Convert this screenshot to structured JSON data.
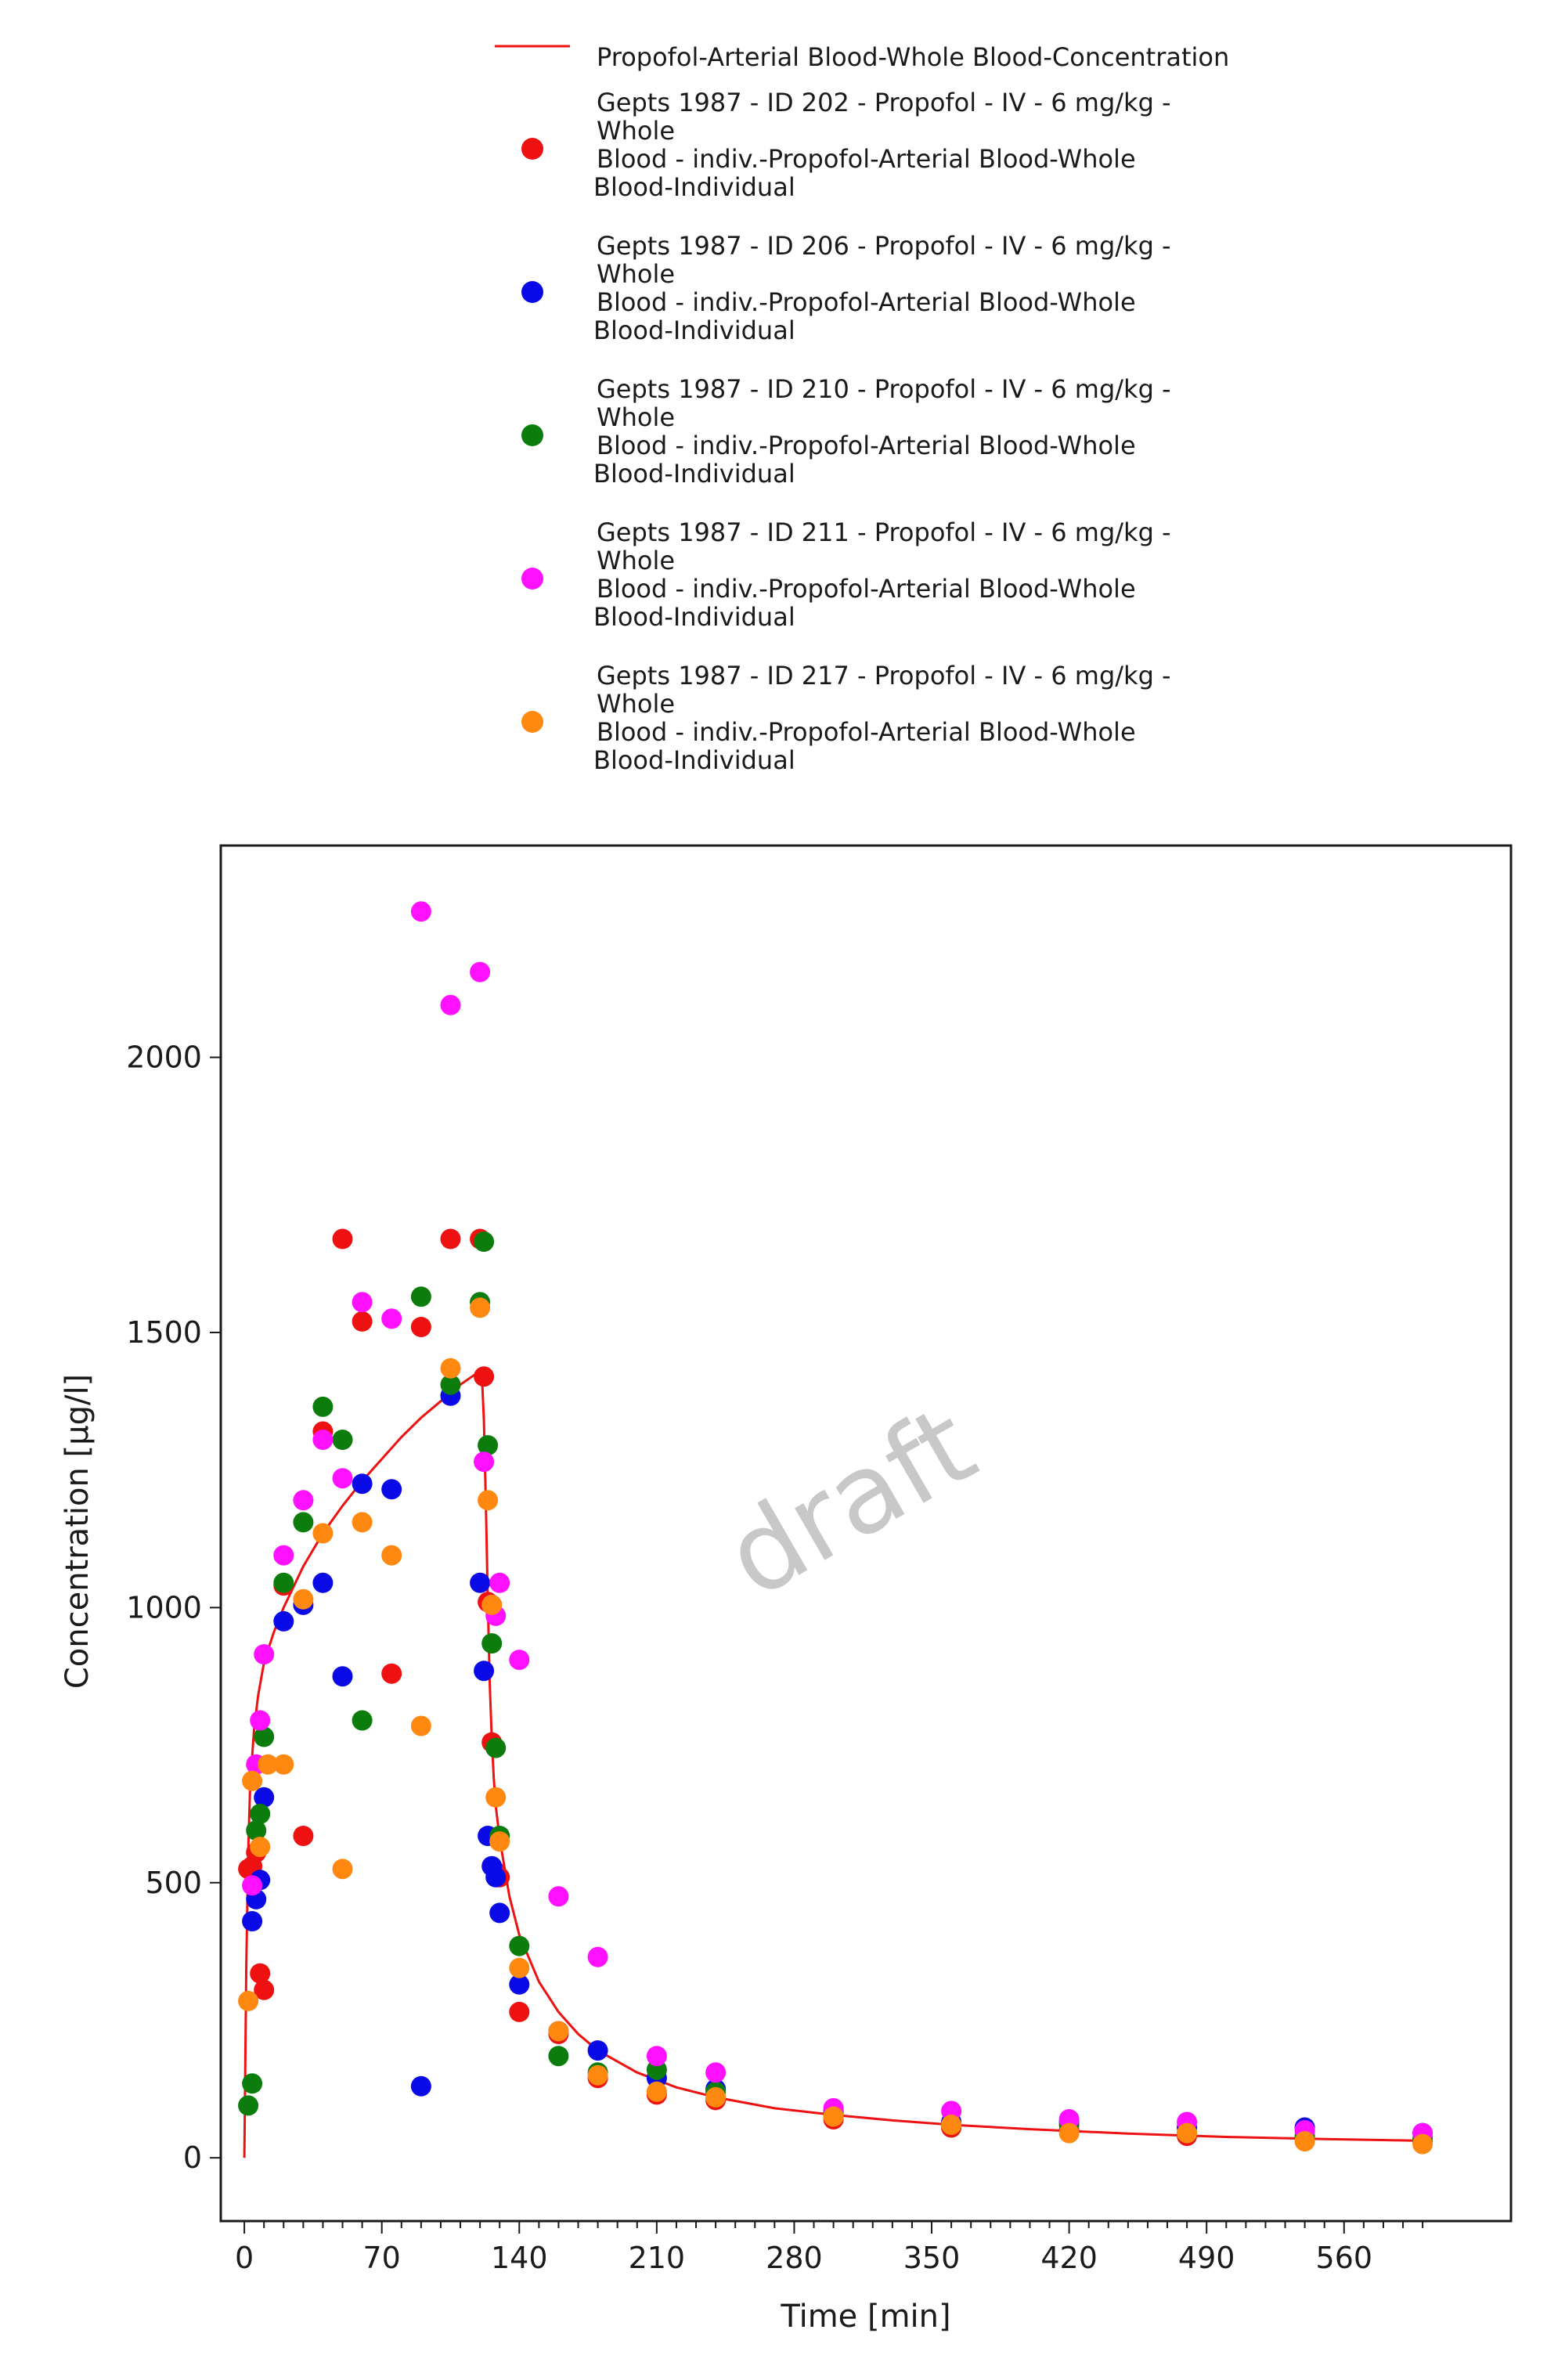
{
  "chart_data": {
    "type": "scatter",
    "watermark": "draft",
    "xlabel": "Time [min]",
    "ylabel": "Concentration [µg/l]",
    "xlim": [
      -12,
      645
    ],
    "ylim": [
      -115,
      2385
    ],
    "xticks": [
      0,
      70,
      140,
      210,
      280,
      350,
      420,
      490,
      560
    ],
    "yticks": [
      0,
      500,
      1000,
      1500,
      2000
    ],
    "grid": false,
    "legend_position": "top",
    "line_series": {
      "name": "Propofol-Arterial Blood-Whole Blood-Concentration",
      "color": "#ee1111",
      "x": [
        0,
        1,
        2,
        3,
        5,
        7,
        10,
        15,
        20,
        30,
        40,
        50,
        60,
        70,
        80,
        90,
        100,
        110,
        120,
        121,
        122,
        123,
        124,
        125,
        126,
        127,
        128,
        130,
        135,
        140,
        150,
        160,
        170,
        180,
        200,
        220,
        240,
        270,
        300,
        330,
        360,
        400,
        450,
        500,
        550,
        600
      ],
      "y": [
        0,
        350,
        560,
        680,
        780,
        840,
        900,
        955,
        1000,
        1075,
        1135,
        1185,
        1230,
        1270,
        1310,
        1345,
        1375,
        1405,
        1430,
        1420,
        1340,
        1190,
        1010,
        860,
        760,
        690,
        640,
        580,
        475,
        405,
        320,
        265,
        225,
        195,
        155,
        128,
        110,
        90,
        78,
        68,
        60,
        52,
        44,
        38,
        34,
        31
      ]
    },
    "series": [
      {
        "name_lines": [
          "Gepts 1987 - ID 202 - Propofol - IV - 6 mg/kg -",
          "Whole",
          "Blood - indiv.-Propofol-Arterial Blood-Whole",
          "Blood-Individual"
        ],
        "color": "#ee1111",
        "points": [
          [
            2,
            525
          ],
          [
            4,
            530
          ],
          [
            6,
            555
          ],
          [
            8,
            335
          ],
          [
            10,
            305
          ],
          [
            20,
            1040
          ],
          [
            30,
            585
          ],
          [
            40,
            1320
          ],
          [
            50,
            1670
          ],
          [
            60,
            1520
          ],
          [
            75,
            880
          ],
          [
            90,
            1510
          ],
          [
            105,
            1670
          ],
          [
            120,
            1670
          ],
          [
            122,
            1420
          ],
          [
            124,
            1010
          ],
          [
            126,
            755
          ],
          [
            128,
            520
          ],
          [
            130,
            510
          ],
          [
            140,
            265
          ],
          [
            160,
            225
          ],
          [
            180,
            145
          ],
          [
            210,
            115
          ],
          [
            240,
            105
          ],
          [
            300,
            70
          ],
          [
            360,
            55
          ],
          [
            420,
            50
          ],
          [
            480,
            40
          ],
          [
            540,
            35
          ],
          [
            600,
            30
          ]
        ]
      },
      {
        "name_lines": [
          "Gepts 1987 - ID 206 - Propofol - IV - 6 mg/kg -",
          "Whole",
          "Blood - indiv.-Propofol-Arterial Blood-Whole",
          "Blood-Individual"
        ],
        "color": "#0a0ae6",
        "points": [
          [
            4,
            430
          ],
          [
            6,
            470
          ],
          [
            8,
            505
          ],
          [
            10,
            655
          ],
          [
            20,
            975
          ],
          [
            30,
            1005
          ],
          [
            40,
            1045
          ],
          [
            50,
            875
          ],
          [
            60,
            1225
          ],
          [
            75,
            1215
          ],
          [
            90,
            130
          ],
          [
            105,
            1385
          ],
          [
            120,
            1045
          ],
          [
            122,
            885
          ],
          [
            124,
            585
          ],
          [
            126,
            530
          ],
          [
            128,
            510
          ],
          [
            130,
            445
          ],
          [
            140,
            315
          ],
          [
            160,
            230
          ],
          [
            180,
            195
          ],
          [
            210,
            145
          ],
          [
            240,
            125
          ],
          [
            300,
            85
          ],
          [
            360,
            65
          ],
          [
            420,
            65
          ],
          [
            480,
            55
          ],
          [
            540,
            55
          ],
          [
            600,
            45
          ]
        ]
      },
      {
        "name_lines": [
          "Gepts 1987 - ID 210 - Propofol - IV - 6 mg/kg -",
          "Whole",
          "Blood - indiv.-Propofol-Arterial Blood-Whole",
          "Blood-Individual"
        ],
        "color": "#0c7d0c",
        "points": [
          [
            2,
            95
          ],
          [
            4,
            135
          ],
          [
            6,
            595
          ],
          [
            8,
            625
          ],
          [
            10,
            765
          ],
          [
            20,
            1045
          ],
          [
            30,
            1155
          ],
          [
            40,
            1365
          ],
          [
            50,
            1305
          ],
          [
            60,
            795
          ],
          [
            90,
            1565
          ],
          [
            105,
            1405
          ],
          [
            120,
            1555
          ],
          [
            122,
            1665
          ],
          [
            124,
            1295
          ],
          [
            126,
            935
          ],
          [
            128,
            745
          ],
          [
            130,
            585
          ],
          [
            140,
            385
          ],
          [
            160,
            185
          ],
          [
            180,
            155
          ],
          [
            210,
            160
          ],
          [
            240,
            120
          ],
          [
            300,
            80
          ],
          [
            360,
            60
          ],
          [
            420,
            60
          ],
          [
            480,
            45
          ],
          [
            540,
            40
          ],
          [
            600,
            35
          ]
        ]
      },
      {
        "name_lines": [
          "Gepts 1987 - ID 211 - Propofol - IV - 6 mg/kg -",
          "Whole",
          "Blood - indiv.-Propofol-Arterial Blood-Whole",
          "Blood-Individual"
        ],
        "color": "#ff11ff",
        "points": [
          [
            4,
            495
          ],
          [
            6,
            715
          ],
          [
            8,
            795
          ],
          [
            10,
            915
          ],
          [
            20,
            1095
          ],
          [
            30,
            1195
          ],
          [
            40,
            1305
          ],
          [
            50,
            1235
          ],
          [
            60,
            1555
          ],
          [
            75,
            1525
          ],
          [
            90,
            2265
          ],
          [
            105,
            2095
          ],
          [
            120,
            2155
          ],
          [
            122,
            1265
          ],
          [
            126,
            1005
          ],
          [
            128,
            985
          ],
          [
            130,
            1045
          ],
          [
            140,
            905
          ],
          [
            160,
            475
          ],
          [
            180,
            365
          ],
          [
            210,
            185
          ],
          [
            240,
            155
          ],
          [
            300,
            90
          ],
          [
            360,
            85
          ],
          [
            420,
            70
          ],
          [
            480,
            65
          ],
          [
            540,
            50
          ],
          [
            600,
            45
          ]
        ]
      },
      {
        "name_lines": [
          "Gepts 1987 - ID 217 - Propofol - IV - 6 mg/kg -",
          "Whole",
          "Blood - indiv.-Propofol-Arterial Blood-Whole",
          "Blood-Individual"
        ],
        "color": "#ff8811",
        "points": [
          [
            2,
            285
          ],
          [
            4,
            685
          ],
          [
            8,
            565
          ],
          [
            12,
            715
          ],
          [
            20,
            715
          ],
          [
            30,
            1015
          ],
          [
            40,
            1135
          ],
          [
            50,
            525
          ],
          [
            60,
            1155
          ],
          [
            75,
            1095
          ],
          [
            90,
            785
          ],
          [
            105,
            1435
          ],
          [
            120,
            1545
          ],
          [
            124,
            1195
          ],
          [
            126,
            1005
          ],
          [
            128,
            655
          ],
          [
            130,
            575
          ],
          [
            140,
            345
          ],
          [
            160,
            230
          ],
          [
            180,
            150
          ],
          [
            210,
            120
          ],
          [
            240,
            110
          ],
          [
            300,
            75
          ],
          [
            360,
            60
          ],
          [
            420,
            45
          ],
          [
            480,
            45
          ],
          [
            540,
            30
          ],
          [
            600,
            25
          ]
        ]
      }
    ]
  }
}
